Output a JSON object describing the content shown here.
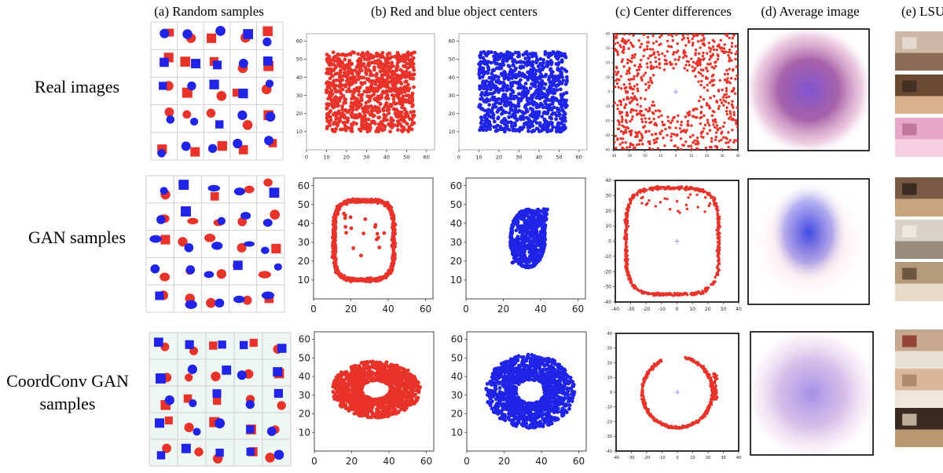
{
  "column_headers": [
    "(a) Random samples",
    "(b) Red and blue object centers",
    "(c) Center differences",
    "(d) Average image",
    "(e) LSUN"
  ],
  "row_headers": [
    [
      "Real images"
    ],
    [
      "GAN samples"
    ],
    [
      "CoordConv GAN",
      "samples"
    ]
  ],
  "colors": {
    "red": "#e8332b",
    "blue": "#1f24e6",
    "grid_line": "#cfcfcf",
    "tile_bg": "#ffffff",
    "tile_bg_coordconv": "#eef6f4"
  },
  "chart_data": [
    {
      "type": "scatter",
      "panel": "real-red-centers",
      "color": "#e8332b",
      "xlim": [
        0,
        64
      ],
      "ylim": [
        64,
        0
      ],
      "xticks": [
        0,
        10,
        20,
        30,
        40,
        50,
        60
      ],
      "yticks": [
        10,
        20,
        30,
        40,
        50,
        60
      ],
      "distribution": "uniform square, x 10-54, y 10-54"
    },
    {
      "type": "scatter",
      "panel": "real-blue-centers",
      "color": "#1f24e6",
      "xlim": [
        0,
        64
      ],
      "ylim": [
        64,
        0
      ],
      "xticks": [
        0,
        10,
        20,
        30,
        40,
        50,
        60
      ],
      "yticks": [
        10,
        20,
        30,
        40,
        50,
        60
      ],
      "distribution": "uniform square, x 10-54, y 10-54"
    },
    {
      "type": "scatter",
      "panel": "real-center-differences",
      "color": "#e8332b",
      "xlim": [
        -40,
        40
      ],
      "ylim": [
        40,
        -40
      ],
      "xticks": [
        -40,
        -30,
        -20,
        -10,
        0,
        10,
        20,
        30,
        40
      ],
      "yticks": [
        -40,
        -30,
        -20,
        -10,
        0,
        10,
        20,
        30,
        40
      ],
      "distribution": "spread over square with empty disk of radius about 16 at origin"
    },
    {
      "type": "scatter",
      "panel": "gan-red-centers",
      "color": "#e8332b",
      "xlim": [
        0,
        64
      ],
      "ylim": [
        64,
        0
      ],
      "xticks": [
        0,
        20,
        40,
        60
      ],
      "yticks": [
        10,
        20,
        30,
        40,
        50,
        60
      ],
      "distribution": "rounded-square ring, x 12-42, y 12-52"
    },
    {
      "type": "scatter",
      "panel": "gan-blue-centers",
      "color": "#1f24e6",
      "xlim": [
        0,
        64
      ],
      "ylim": [
        64,
        0
      ],
      "xticks": [
        0,
        20,
        40,
        60
      ],
      "yticks": [
        10,
        20,
        30,
        40,
        50,
        60
      ],
      "distribution": "tilted quadrilateral cluster, x 22-46, y 15-48"
    },
    {
      "type": "scatter",
      "panel": "gan-center-differences",
      "color": "#e8332b",
      "xlim": [
        -40,
        40
      ],
      "ylim": [
        40,
        -40
      ],
      "xticks": [
        -40,
        -30,
        -20,
        -10,
        0,
        10,
        20,
        30,
        40
      ],
      "yticks": [
        -40,
        -30,
        -20,
        -10,
        0,
        10,
        20,
        30,
        40
      ],
      "distribution": "rounded-square ring, x -34 to 28, y -36 to 37"
    },
    {
      "type": "scatter",
      "panel": "coordconv-red-centers",
      "color": "#e8332b",
      "xlim": [
        0,
        64
      ],
      "ylim": [
        64,
        0
      ],
      "xticks": [
        0,
        20,
        40,
        60
      ],
      "yticks": [
        10,
        20,
        30,
        40,
        50,
        60
      ],
      "distribution": "dense annulus, centre (33,33), x 10-57, y 17-50"
    },
    {
      "type": "scatter",
      "panel": "coordconv-blue-centers",
      "color": "#1f24e6",
      "xlim": [
        0,
        64
      ],
      "ylim": [
        64,
        0
      ],
      "xticks": [
        0,
        20,
        40,
        60
      ],
      "yticks": [
        10,
        20,
        30,
        40,
        50,
        60
      ],
      "distribution": "dense annulus, centre (34,32), x 10-57, y 14-54"
    },
    {
      "type": "scatter",
      "panel": "coordconv-center-differences",
      "color": "#e8332b",
      "xlim": [
        -40,
        40
      ],
      "ylim": [
        40,
        -40
      ],
      "xticks": [
        -40,
        -30,
        -20,
        -10,
        0,
        10,
        20,
        30,
        40
      ],
      "yticks": [
        -40,
        -30,
        -20,
        -10,
        0,
        10,
        20,
        30,
        40
      ],
      "distribution": "open ring, x -22 to 26, y -25 to 25"
    }
  ]
}
